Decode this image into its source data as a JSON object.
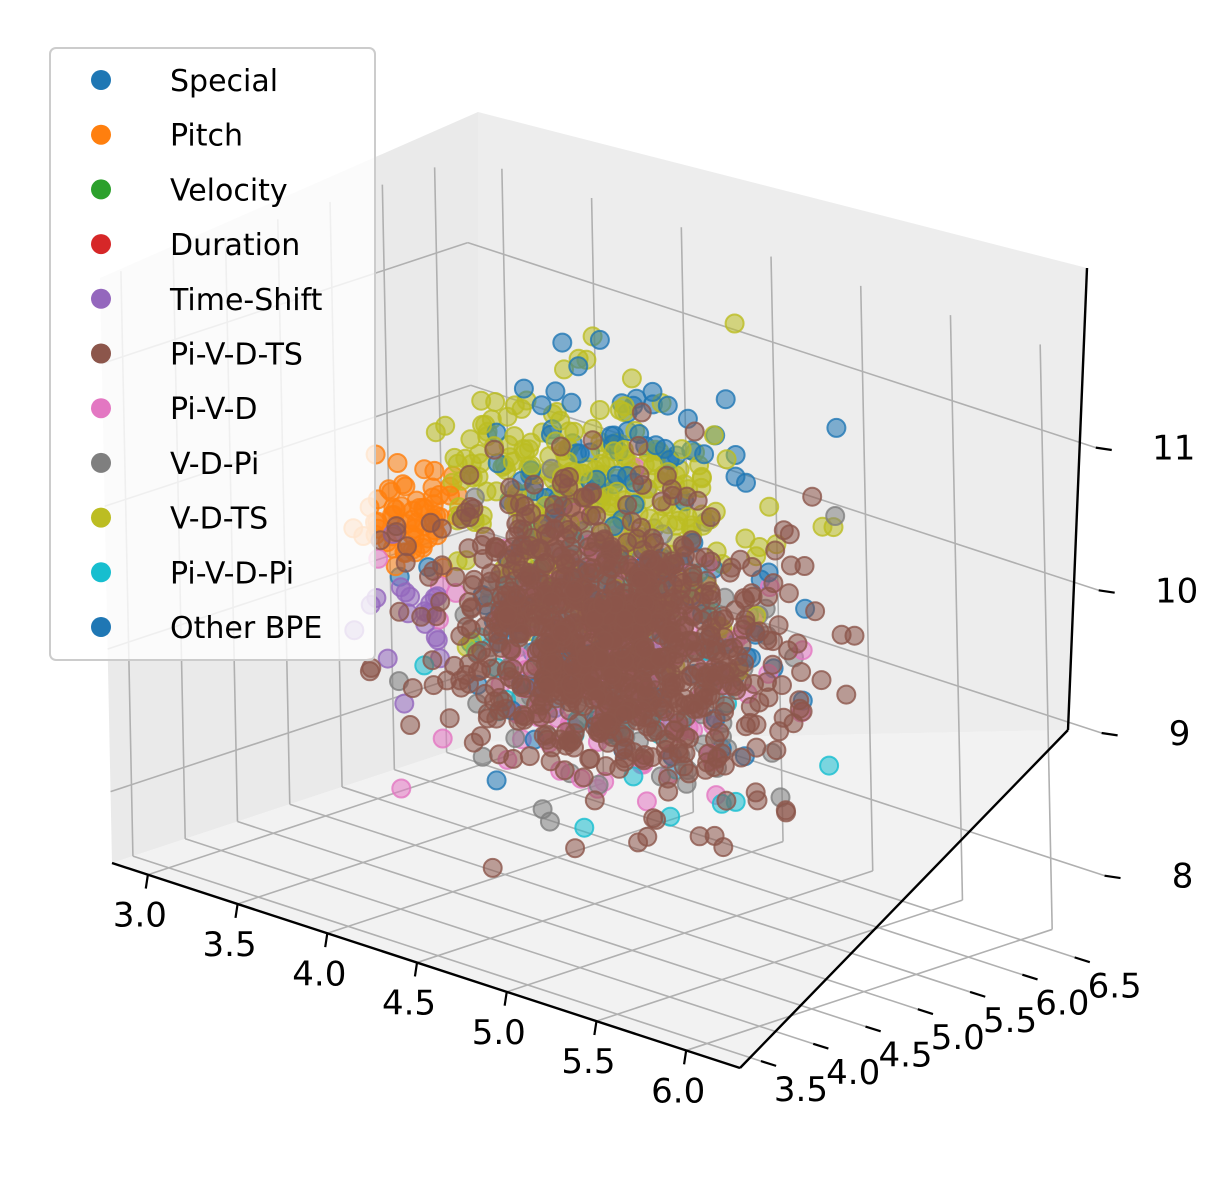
{
  "chart_data": {
    "type": "scatter",
    "projection": "3d",
    "title": "",
    "xlabel": "",
    "ylabel": "",
    "zlabel": "",
    "grid": true,
    "legend_position": "upper-left",
    "xlim": [
      2.8,
      6.3
    ],
    "ylim": [
      3.3,
      6.8
    ],
    "zlim": [
      7.5,
      11.6
    ],
    "x_ticks": [
      "3.0",
      "3.5",
      "4.0",
      "4.5",
      "5.0",
      "5.5",
      "6.0"
    ],
    "y_ticks": [
      "3.5",
      "4.0",
      "4.5",
      "5.0",
      "5.5",
      "6.0",
      "6.5"
    ],
    "z_ticks": [
      "8",
      "9",
      "10",
      "11"
    ],
    "series": [
      {
        "name": "Special",
        "color": "#1f77b4",
        "center": [
          4.6,
          5.2,
          10.7
        ],
        "spread": [
          0.9,
          0.9,
          0.7
        ],
        "count": 60,
        "seed": 11
      },
      {
        "name": "Pitch",
        "color": "#ff7f0e",
        "center": [
          3.6,
          4.8,
          9.9
        ],
        "spread": [
          0.25,
          0.4,
          0.35
        ],
        "count": 60,
        "seed": 23
      },
      {
        "name": "Velocity",
        "color": "#2ca02c",
        "center": [
          4.5,
          5.0,
          9.5
        ],
        "spread": [
          0.3,
          0.3,
          0.3
        ],
        "count": 6,
        "seed": 37
      },
      {
        "name": "Duration",
        "color": "#d62728",
        "center": [
          4.5,
          5.0,
          9.5
        ],
        "spread": [
          0.3,
          0.3,
          0.3
        ],
        "count": 6,
        "seed": 41
      },
      {
        "name": "Time-Shift",
        "color": "#9467bd",
        "center": [
          3.8,
          4.6,
          9.3
        ],
        "spread": [
          0.4,
          0.4,
          0.5
        ],
        "count": 20,
        "seed": 53
      },
      {
        "name": "Pi-V-D-TS",
        "color": "#8c564b",
        "center": [
          4.6,
          5.0,
          9.4
        ],
        "spread": [
          1.0,
          1.0,
          1.0
        ],
        "count": 900,
        "seed": 67
      },
      {
        "name": "Pi-V-D",
        "color": "#e377c2",
        "center": [
          4.6,
          5.0,
          9.3
        ],
        "spread": [
          1.0,
          1.0,
          1.0
        ],
        "count": 180,
        "seed": 71
      },
      {
        "name": "V-D-Pi",
        "color": "#7f7f7f",
        "center": [
          4.6,
          5.0,
          9.4
        ],
        "spread": [
          1.0,
          1.0,
          1.0
        ],
        "count": 180,
        "seed": 83
      },
      {
        "name": "V-D-TS",
        "color": "#bcbd22",
        "center": [
          4.4,
          5.2,
          10.2
        ],
        "spread": [
          1.0,
          1.0,
          0.9
        ],
        "count": 300,
        "seed": 97
      },
      {
        "name": "Pi-V-D-Pi",
        "color": "#17becf",
        "center": [
          4.6,
          5.0,
          9.2
        ],
        "spread": [
          1.0,
          1.0,
          1.0
        ],
        "count": 60,
        "seed": 101
      },
      {
        "name": "Other BPE",
        "color": "#1f77b4",
        "center": [
          4.6,
          5.0,
          9.5
        ],
        "spread": [
          1.0,
          1.0,
          1.0
        ],
        "count": 120,
        "seed": 113
      }
    ]
  }
}
